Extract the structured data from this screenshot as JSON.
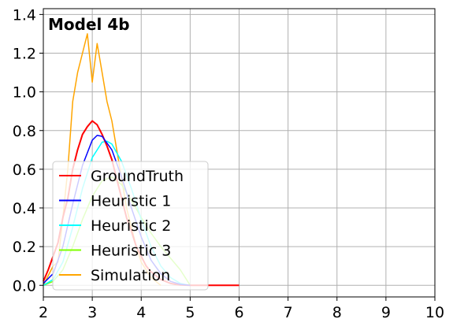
{
  "chart_data": {
    "type": "line",
    "title": "Model 4b",
    "xlabel": "",
    "ylabel": "",
    "xlim": [
      2,
      10
    ],
    "ylim": [
      -0.06,
      1.43
    ],
    "xticks": [
      2,
      3,
      4,
      5,
      6,
      7,
      8,
      9,
      10
    ],
    "yticks": [
      0.0,
      0.2,
      0.4,
      0.6,
      0.8,
      1.0,
      1.2,
      1.4
    ],
    "ytick_labels": [
      "0.0",
      "0.2",
      "0.4",
      "0.6",
      "0.8",
      "1.0",
      "1.2",
      "1.4"
    ],
    "grid": true,
    "legend_position": "lower-left",
    "series": [
      {
        "name": "GroundTruth",
        "color": "#ff0000",
        "x": [
          2.0,
          2.1,
          2.2,
          2.3,
          2.4,
          2.5,
          2.6,
          2.7,
          2.8,
          2.9,
          3.0,
          3.1,
          3.2,
          3.3,
          3.4,
          3.5,
          3.6,
          3.7,
          3.8,
          3.9,
          4.0,
          4.1,
          4.2,
          4.3,
          4.4,
          4.5,
          4.6,
          4.7,
          4.8,
          4.9,
          5.0,
          5.5,
          6.0
        ],
        "y": [
          0.02,
          0.08,
          0.15,
          0.22,
          0.35,
          0.45,
          0.6,
          0.7,
          0.78,
          0.82,
          0.85,
          0.83,
          0.78,
          0.72,
          0.65,
          0.55,
          0.45,
          0.35,
          0.28,
          0.2,
          0.15,
          0.1,
          0.07,
          0.05,
          0.03,
          0.02,
          0.01,
          0.005,
          0.002,
          0.001,
          0.0,
          0.0,
          0.0
        ]
      },
      {
        "name": "Heuristic 1",
        "color": "#0000ff",
        "x": [
          2.0,
          2.2,
          2.4,
          2.6,
          2.8,
          3.0,
          3.1,
          3.2,
          3.4,
          3.6,
          3.8,
          4.0,
          4.2,
          4.4,
          4.6,
          4.8,
          5.0
        ],
        "y": [
          0.01,
          0.06,
          0.2,
          0.42,
          0.62,
          0.75,
          0.775,
          0.77,
          0.7,
          0.56,
          0.4,
          0.25,
          0.13,
          0.06,
          0.02,
          0.005,
          0.0
        ]
      },
      {
        "name": "Heuristic 2",
        "color": "#00ffff",
        "x": [
          2.0,
          2.2,
          2.4,
          2.6,
          2.8,
          3.0,
          3.2,
          3.3,
          3.4,
          3.6,
          3.8,
          4.0,
          4.2,
          4.4,
          4.6,
          4.8,
          5.0
        ],
        "y": [
          0.0,
          0.03,
          0.12,
          0.3,
          0.5,
          0.66,
          0.74,
          0.745,
          0.73,
          0.64,
          0.5,
          0.34,
          0.2,
          0.1,
          0.04,
          0.01,
          0.0
        ]
      },
      {
        "name": "Heuristic 3",
        "color": "#7fff00",
        "x": [
          2.0,
          2.2,
          2.4,
          2.6,
          2.8,
          3.0,
          3.2,
          3.4,
          3.6,
          3.8,
          4.0,
          4.2,
          4.4,
          4.6,
          4.8,
          5.0
        ],
        "y": [
          0.0,
          0.02,
          0.08,
          0.2,
          0.34,
          0.46,
          0.54,
          0.56,
          0.52,
          0.44,
          0.35,
          0.27,
          0.2,
          0.14,
          0.08,
          0.0
        ]
      },
      {
        "name": "Simulation",
        "color": "#ffa500",
        "x": [
          2.0,
          2.1,
          2.2,
          2.3,
          2.4,
          2.5,
          2.6,
          2.7,
          2.8,
          2.9,
          3.0,
          3.1,
          3.2,
          3.3,
          3.4,
          3.5,
          3.6,
          3.7,
          3.8,
          3.9,
          4.0,
          4.1,
          4.2,
          4.3,
          4.4
        ],
        "y": [
          0.0,
          0.05,
          0.1,
          0.12,
          0.35,
          0.6,
          0.95,
          1.1,
          1.2,
          1.3,
          1.05,
          1.25,
          1.1,
          0.95,
          0.85,
          0.7,
          0.55,
          0.4,
          0.3,
          0.2,
          0.12,
          0.08,
          0.04,
          0.02,
          0.0
        ]
      }
    ]
  }
}
